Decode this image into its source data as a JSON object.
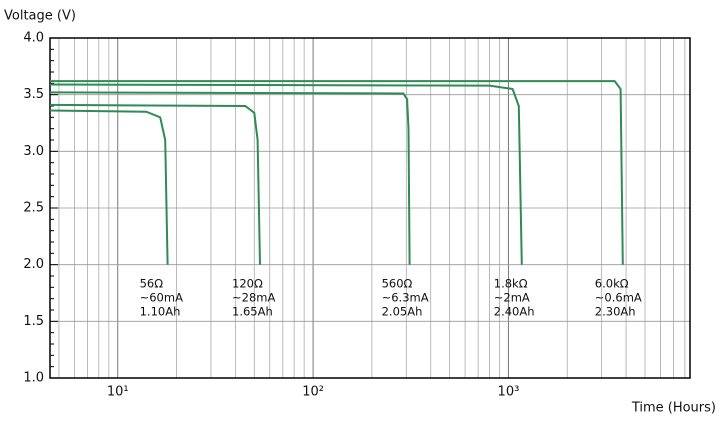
{
  "chart_data": {
    "type": "line",
    "y_label": "Voltage (V)",
    "x_label": "Time (Hours)",
    "xlog": true,
    "xlim": [
      4.5,
      8500
    ],
    "xticks": [
      {
        "value": 10,
        "label": "10¹"
      },
      {
        "value": 100,
        "label": "10²"
      },
      {
        "value": 1000,
        "label": "10³"
      }
    ],
    "x_minor_grid": [
      5,
      6,
      7,
      8,
      9,
      20,
      30,
      40,
      50,
      60,
      70,
      80,
      90,
      200,
      300,
      400,
      500,
      600,
      700,
      800,
      900,
      2000,
      3000,
      4000,
      5000,
      6000,
      7000,
      8000
    ],
    "ylim": [
      1.0,
      4.0
    ],
    "yticks": [
      {
        "value": 1,
        "label": "1.0"
      },
      {
        "value": 1.5,
        "label": "1.5"
      },
      {
        "value": 2,
        "label": "2.0"
      },
      {
        "value": 2.5,
        "label": "2.5"
      },
      {
        "value": 3,
        "label": "3.0"
      },
      {
        "value": 3.5,
        "label": "3.5"
      },
      {
        "value": 4,
        "label": "4.0"
      }
    ],
    "y_minor_ticks": [
      1.1,
      1.2,
      1.3,
      1.4,
      1.6,
      1.7,
      1.8,
      1.9,
      2.1,
      2.2,
      2.3,
      2.4,
      2.6,
      2.7,
      2.8,
      2.9,
      3.1,
      3.2,
      3.3,
      3.4,
      3.6,
      3.7,
      3.8,
      3.9
    ],
    "grid": true,
    "series": [
      {
        "name": "56Ω",
        "current": "~60mA",
        "capacity": "1.10Ah",
        "color": "#2f8a55",
        "x": [
          4.5,
          14,
          16.5,
          17.5,
          18
        ],
        "y": [
          3.36,
          3.35,
          3.3,
          3.1,
          2.0
        ]
      },
      {
        "name": "120Ω",
        "current": "~28mA",
        "capacity": "1.65Ah",
        "color": "#2f8a55",
        "x": [
          4.5,
          45,
          50,
          52,
          53.5
        ],
        "y": [
          3.41,
          3.4,
          3.34,
          3.1,
          2.0
        ]
      },
      {
        "name": "560Ω",
        "current": "~6.3mA",
        "capacity": "2.05Ah",
        "color": "#2f8a55",
        "x": [
          4.5,
          290,
          303,
          308,
          312
        ],
        "y": [
          3.52,
          3.51,
          3.46,
          3.2,
          2.0
        ]
      },
      {
        "name": "1.8kΩ",
        "current": "~2mA",
        "capacity": "2.40Ah",
        "color": "#2f8a55",
        "x": [
          4.5,
          800,
          1050,
          1130,
          1170
        ],
        "y": [
          3.59,
          3.58,
          3.55,
          3.4,
          2.0
        ]
      },
      {
        "name": "6.0kΩ",
        "current": "~0.6mA",
        "capacity": "2.30Ah",
        "color": "#2f8a55",
        "x": [
          4.5,
          3500,
          3750,
          3850
        ],
        "y": [
          3.62,
          3.62,
          3.55,
          2.0
        ]
      }
    ]
  }
}
